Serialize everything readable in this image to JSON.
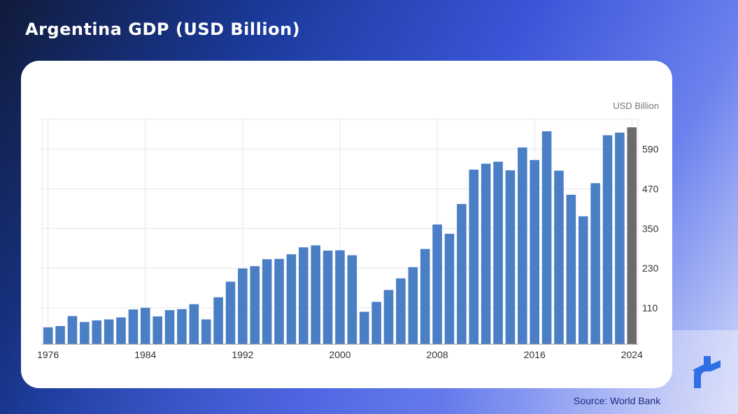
{
  "title": "Argentina GDP (USD Billion)",
  "source": "Source: World Bank",
  "colors": {
    "bar": "#4a7ec5",
    "bar_last": "#6b6b6b",
    "grid": "#e6e6e6"
  },
  "chart_data": {
    "type": "bar",
    "unit_label": "USD Billion",
    "x": [
      1976,
      1977,
      1978,
      1979,
      1980,
      1981,
      1982,
      1983,
      1984,
      1985,
      1986,
      1987,
      1988,
      1989,
      1990,
      1991,
      1992,
      1993,
      1994,
      1995,
      1996,
      1997,
      1998,
      1999,
      2000,
      2001,
      2002,
      2003,
      2004,
      2005,
      2006,
      2007,
      2008,
      2009,
      2010,
      2011,
      2012,
      2013,
      2014,
      2015,
      2016,
      2017,
      2018,
      2019,
      2020,
      2021,
      2022,
      2023,
      2024
    ],
    "values": [
      51,
      55,
      85,
      67,
      72,
      75,
      81,
      105,
      110,
      84,
      103,
      106,
      121,
      75,
      142,
      189,
      229,
      236,
      257,
      258,
      272,
      293,
      299,
      283,
      284,
      269,
      98,
      128,
      164,
      199,
      233,
      288,
      362,
      334,
      424,
      528,
      546,
      552,
      526,
      595,
      557,
      644,
      525,
      452,
      387,
      487,
      632,
      640,
      656
    ],
    "highlight_last": true,
    "x_ticks": [
      1976,
      1984,
      1992,
      2000,
      2008,
      2016,
      2024
    ],
    "y_ticks": [
      110,
      230,
      350,
      470,
      590
    ],
    "ylim": [
      0,
      680
    ],
    "y_axis_side": "right",
    "grid": true
  },
  "logo": {
    "icon": "brand-logo-icon"
  }
}
